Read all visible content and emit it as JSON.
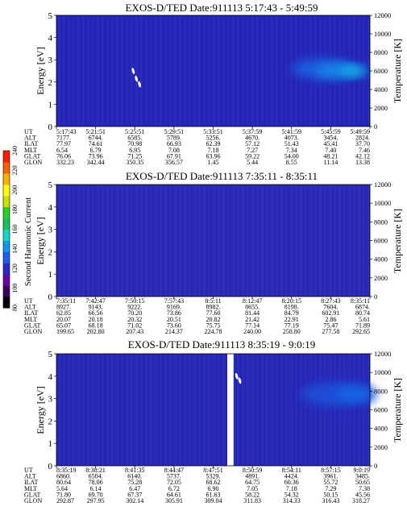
{
  "colorbar": {
    "label": "Second Harmonic Current",
    "ticks": [
      "240",
      "220",
      "200",
      "180",
      "160",
      "140",
      "120",
      "100",
      "80"
    ],
    "colors": [
      "#000000",
      "#3a0060",
      "#6a00a8",
      "#2a2ac8",
      "#1f5ef0",
      "#0a9ae8",
      "#13d6c6",
      "#18c060",
      "#28d028",
      "#c8e000",
      "#ffff00",
      "#ffb000",
      "#ff6000",
      "#ff2000"
    ]
  },
  "chart_data": [
    {
      "type": "heatmap",
      "title": "EXOS-D/TED   Date:911113   5:17:43 - 5:49:59",
      "ylabel": "Energy [eV]",
      "ylabel_right": "Temperature [K]",
      "ylim": [
        0,
        5
      ],
      "yticks": [
        "0",
        "1",
        "2",
        "3",
        "4",
        "5"
      ],
      "y2lim": [
        0,
        12000
      ],
      "y2ticks": [
        "0",
        "2000",
        "4000",
        "6000",
        "8000",
        "10000",
        "12000"
      ],
      "base_color": "#2626b8",
      "gaps": [],
      "blobs": [
        {
          "x": 0.85,
          "y": 2.6,
          "rx": 0.1,
          "ry": 0.45,
          "color": "#1a60e0"
        },
        {
          "x": 0.9,
          "y": 2.5,
          "rx": 0.075,
          "ry": 0.32,
          "color": "#1486e6"
        },
        {
          "x": 0.95,
          "y": 2.5,
          "rx": 0.045,
          "ry": 0.22,
          "color": "#16b4ec"
        }
      ],
      "marks": [
        {
          "x": 0.245,
          "y": 2.5
        },
        {
          "x": 0.255,
          "y": 2.15
        },
        {
          "x": 0.265,
          "y": 1.9
        }
      ],
      "table": {
        "labels": [
          "UT",
          "ALT",
          "ILAT",
          "MLT",
          "GLAT",
          "GLON"
        ],
        "columns": [
          [
            "5:17:43",
            "7177.",
            "77.97",
            "6.54",
            "76.06",
            "332.23"
          ],
          [
            "5:21:51",
            "6744.",
            "74.61",
            "6.79",
            "73.96",
            "342.44"
          ],
          [
            "5:25:51",
            "6585.",
            "70.98",
            "6.95",
            "71.25",
            "350.35"
          ],
          [
            "5:29:51",
            "5789.",
            "66.93",
            "7.08",
            "67.91",
            "356.57"
          ],
          [
            "5:33:51",
            "5256.",
            "62.39",
            "7.18",
            "63.96",
            "1.45"
          ],
          [
            "5:37:59",
            "4670.",
            "57.12",
            "7.27",
            "59.22",
            "5.44"
          ],
          [
            "5:41:59",
            "4073.",
            "51.43",
            "7.34",
            "54.00",
            "8.55"
          ],
          [
            "5:45:59",
            "3454.",
            "45.41",
            "7.40",
            "48.21",
            "11.14"
          ],
          [
            "5:49:59",
            "2824.",
            "37.70",
            "7.46",
            "42.12",
            "13.38"
          ]
        ]
      }
    },
    {
      "type": "heatmap",
      "title": "EXOS-D/TED   Date:911113   7:35:11 - 8:35:11",
      "ylabel": "Energy [eV]",
      "ylabel_right": "Temperature [K]",
      "ylim": [
        0,
        5
      ],
      "yticks": [
        "0",
        "1",
        "2",
        "3",
        "4",
        "5"
      ],
      "y2lim": [
        0,
        12000
      ],
      "y2ticks": [
        "0",
        "2000",
        "4000",
        "6000",
        "8000",
        "10000",
        "12000"
      ],
      "base_color": "#2a2ab4",
      "gaps": [],
      "blobs": [],
      "marks": [],
      "table": {
        "labels": [
          "UT",
          "ALT",
          "ILAT",
          "MLT",
          "GLAT",
          "GLON"
        ],
        "columns": [
          [
            "7:35:11",
            "8927.",
            "62.85",
            "20.07",
            "65.07",
            "199.65"
          ],
          [
            "7:42:47",
            "9143.",
            "66.56",
            "20.18",
            "68.18",
            "202.80"
          ],
          [
            "7:50:15",
            "9222.",
            "70.20",
            "20.32",
            "71.02",
            "207.43"
          ],
          [
            "7:57:43",
            "9169.",
            "73.86",
            "20.51",
            "73.60",
            "214.37"
          ],
          [
            "8:5:11",
            "8982.",
            "77.60",
            "20.82",
            "75.75",
            "224.78"
          ],
          [
            "8:12:47",
            "8655.",
            "81.44",
            "21.42",
            "77.14",
            "240.00"
          ],
          [
            "8:20:15",
            "8198.",
            "84.79",
            "22.91",
            "77.19",
            "258.80"
          ],
          [
            "8:27:43",
            "7604.",
            "602.91",
            "2.86",
            "75.47",
            "277.58"
          ],
          [
            "8:35:11",
            "6874.",
            "80.74",
            "5.61",
            "71.89",
            "292.65"
          ]
        ]
      }
    },
    {
      "type": "heatmap",
      "title": "EXOS-D/TED   Date:911113   8:35:19 - 9:0:19",
      "ylabel": "Energy [eV]",
      "ylabel_right": "Temperature [K]",
      "ylim": [
        0,
        5
      ],
      "yticks": [
        "0",
        "1",
        "2",
        "3",
        "4",
        "5"
      ],
      "y2lim": [
        0,
        12000
      ],
      "y2ticks": [
        "0",
        "2000",
        "4000",
        "6000",
        "8000",
        "10000",
        "12000"
      ],
      "base_color": "#2828b6",
      "gaps": [
        [
          0.545,
          0.565
        ]
      ],
      "blobs": [
        {
          "x": 0.9,
          "y": 3.2,
          "rx": 0.12,
          "ry": 0.55,
          "color": "#1f4fd8"
        },
        {
          "x": 0.95,
          "y": 3.2,
          "rx": 0.06,
          "ry": 0.3,
          "color": "#1768e4"
        }
      ],
      "marks": [
        {
          "x": 0.575,
          "y": 4.0
        },
        {
          "x": 0.585,
          "y": 3.8
        }
      ],
      "table": {
        "labels": [
          "UT",
          "ALT",
          "ILAT",
          "MLT",
          "GLAT",
          "GLON"
        ],
        "columns": [
          [
            "8:35:19",
            "6860.",
            "80.64",
            "5.64",
            "71.80",
            "292.87"
          ],
          [
            "8:38:21",
            "6504.",
            "78.06",
            "6.14",
            "69.70",
            "297.95"
          ],
          [
            "8:41:35",
            "6140.",
            "75.28",
            "6.47",
            "67.37",
            "302.14"
          ],
          [
            "8:44:47",
            "5737.",
            "72.05",
            "6.72",
            "64.61",
            "305.91"
          ],
          [
            "8:47:51",
            "5329.",
            "68.62",
            "6.90",
            "61.63",
            "309.04"
          ],
          [
            "8:50:59",
            "4891.",
            "64.75",
            "7.05",
            "58.22",
            "311.83"
          ],
          [
            "8:54:11",
            "4424.",
            "60.36",
            "7.18",
            "54.32",
            "314.33"
          ],
          [
            "8:57:15",
            "3961.",
            "55.72",
            "7.29",
            "50.15",
            "316.43"
          ],
          [
            "9:0:19",
            "3485.",
            "50.65",
            "7.38",
            "45.56",
            "318.27"
          ]
        ]
      }
    }
  ]
}
